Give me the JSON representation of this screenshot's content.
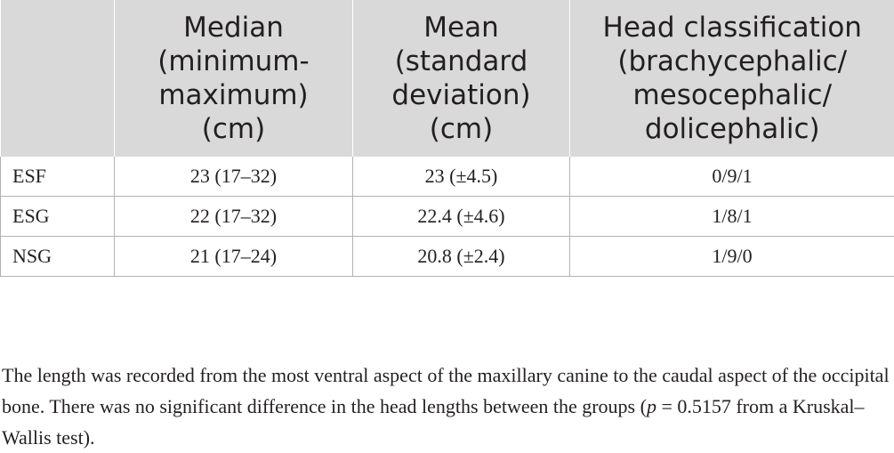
{
  "table": {
    "headers": [
      "",
      "Median\n(minimum-\nmaximum)\n(cm)",
      "Mean\n(standard\ndeviation)\n(cm)",
      "Head classification\n(brachycephalic/\nmesocephalic/\ndolicephalic)"
    ],
    "rows": [
      [
        "ESF",
        "23 (17–32)",
        "23 (±4.5)",
        "0/9/1"
      ],
      [
        "ESG",
        "22 (17–32)",
        "22.4 (±4.6)",
        "1/8/1"
      ],
      [
        "NSG",
        "21 (17–24)",
        "20.8 (±2.4)",
        "1/9/0"
      ]
    ]
  },
  "footnote": {
    "before": "The length was recorded from the most ventral aspect of the maxillary canine to the caudal aspect of the occipital bone. There was no significant difference in the head lengths between the groups (",
    "p_symbol": "p",
    "after": " = 0.5157 from a Kruskal–Wallis test)."
  }
}
